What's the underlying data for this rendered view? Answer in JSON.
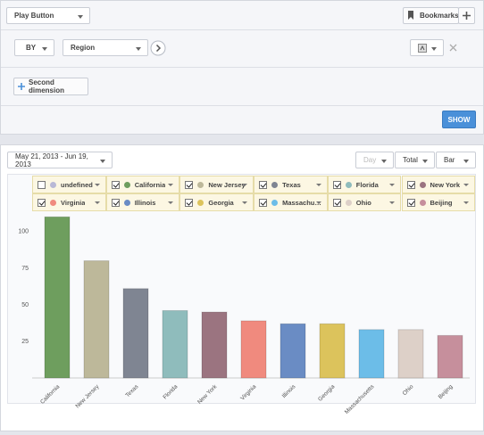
{
  "toolbar": {
    "play": "Play Button",
    "bookmarks": "Bookmarks",
    "by": "BY",
    "dimension": "Region",
    "second_dimension": "Second dimension",
    "show": "SHOW"
  },
  "controls": {
    "date_range": "May 21, 2013 - Jun 19, 2013",
    "period": "Day",
    "metric": "Total",
    "chart_type": "Bar"
  },
  "legend": [
    {
      "name": "undefined",
      "color": "#b9b9d6",
      "checked": false
    },
    {
      "name": "California",
      "color": "#6e9e5e",
      "checked": true
    },
    {
      "name": "New Jersey",
      "color": "#bdb89a",
      "checked": true
    },
    {
      "name": "Texas",
      "color": "#7f8592",
      "checked": true
    },
    {
      "name": "Florida",
      "color": "#8fbcbc",
      "checked": true
    },
    {
      "name": "New York",
      "color": "#9b7480",
      "checked": true
    },
    {
      "name": "Virginia",
      "color": "#f08a7e",
      "checked": true
    },
    {
      "name": "Illinois",
      "color": "#6a8cc4",
      "checked": true
    },
    {
      "name": "Georgia",
      "color": "#dcc35c",
      "checked": true
    },
    {
      "name": "Massachus...",
      "color": "#6cbde8",
      "checked": true
    },
    {
      "name": "Ohio",
      "color": "#ddd0c8",
      "checked": true
    },
    {
      "name": "Beijing",
      "color": "#c68f9c",
      "checked": true
    }
  ],
  "chart_data": {
    "type": "bar",
    "categories": [
      "California",
      "New Jersey",
      "Texas",
      "Florida",
      "New York",
      "Virginia",
      "Illinois",
      "Georgia",
      "Massachusetts",
      "Ohio",
      "Beijing"
    ],
    "values": [
      110,
      80,
      61,
      46,
      45,
      39,
      37,
      37,
      33,
      33,
      29
    ],
    "colors": [
      "#6e9e5e",
      "#bdb89a",
      "#7f8592",
      "#8fbcbc",
      "#9b7480",
      "#f08a7e",
      "#6a8cc4",
      "#dcc35c",
      "#6cbde8",
      "#ddd0c8",
      "#c68f9c"
    ],
    "ylim": [
      0,
      112
    ],
    "yticks": [
      25,
      50,
      75,
      100
    ],
    "grid": false
  }
}
